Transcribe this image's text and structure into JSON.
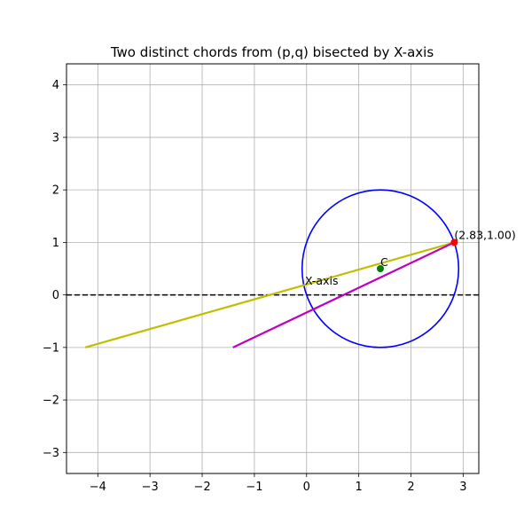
{
  "chart_data": {
    "type": "line",
    "title": "Two distinct chords from (p,q) bisected by X-axis",
    "xlabel": "",
    "ylabel": "",
    "xlim": [
      -4.6,
      3.3
    ],
    "ylim": [
      -3.4,
      4.4
    ],
    "xticks": [
      -4,
      -3,
      -2,
      -1,
      0,
      1,
      2,
      3
    ],
    "yticks": [
      -3,
      -2,
      -1,
      0,
      1,
      2,
      3,
      4
    ],
    "xtick_labels": [
      "−4",
      "−3",
      "−2",
      "−1",
      "0",
      "1",
      "2",
      "3"
    ],
    "ytick_labels": [
      "−3",
      "−2",
      "−1",
      "0",
      "1",
      "2",
      "3",
      "4"
    ],
    "grid": true,
    "legend": "none",
    "circle": {
      "center": [
        1.414,
        0.5
      ],
      "radius": 1.5,
      "color": "#0000ff"
    },
    "x_axis_line": {
      "y": 0,
      "color": "#000000",
      "style": "dashed"
    },
    "series": [
      {
        "x": [
          2.83,
          -4.24
        ],
        "y": [
          1.0,
          -1.0
        ],
        "color": "#bfbf00"
      },
      {
        "x": [
          2.83,
          -1.41
        ],
        "y": [
          1.0,
          -1.0
        ],
        "color": "#bf00bf"
      }
    ],
    "points": [
      {
        "x": 2.83,
        "y": 1.0,
        "color": "#ff0000",
        "label": "(2.83,1.00)"
      },
      {
        "x": 1.414,
        "y": 0.5,
        "color": "#008000",
        "label": "C"
      }
    ],
    "annotations": [
      {
        "text": "X-axis",
        "x": -0.03,
        "y": 0.2
      }
    ]
  }
}
